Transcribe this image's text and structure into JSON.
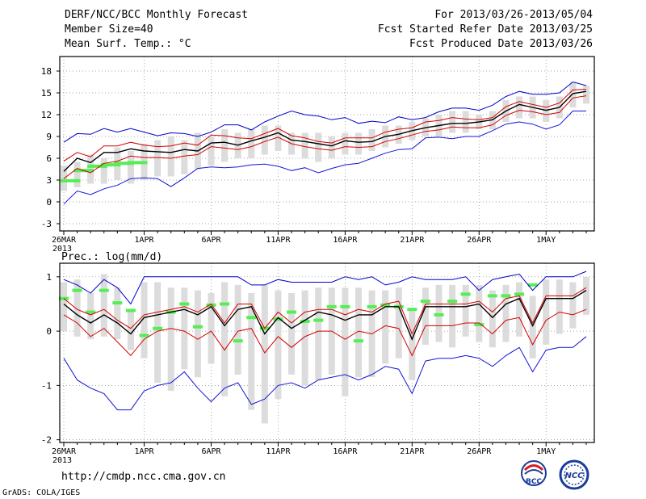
{
  "header": {
    "title": "DERF/NCC/BCC Monthly Forecast",
    "member": "Member Size=40",
    "variable": "Mean Surf. Temp.: °C",
    "period": "For 2013/03/26-2013/05/04",
    "refer": "Fcst Started Refer Date 2013/03/25",
    "produced": "Fcst Produced Date 2013/03/26"
  },
  "footer": {
    "url": "http://cmdp.ncc.cma.gov.cn",
    "grads": "GrADS: COLA/IGES",
    "logo_left": "BCC",
    "logo_right": "NCC"
  },
  "colors": {
    "max": "#0000cc",
    "min": "#1414d8",
    "upper": "#d40000",
    "lower": "#d40000",
    "mean": "#000000",
    "ensemble": "#dcdcdc",
    "obs": "#55ee55"
  },
  "chart_data": [
    {
      "type": "line",
      "title": "Mean Surf. Temp.: °C",
      "ylim": [
        -4,
        20
      ],
      "yticks": [
        -3,
        0,
        3,
        6,
        9,
        12,
        15,
        18
      ],
      "xlabels": [
        "26MAR",
        "1APR",
        "6APR",
        "11APR",
        "16APR",
        "21APR",
        "26APR",
        "1MAY"
      ],
      "xlabel_days": [
        1,
        7,
        12,
        17,
        22,
        27,
        32,
        37
      ],
      "year_label": "2013",
      "days": 40,
      "series": [
        {
          "name": "max",
          "values": [
            8.2,
            9.4,
            9.3,
            10.1,
            9.6,
            10.1,
            9.6,
            9.1,
            9.5,
            9.4,
            9.0,
            9.6,
            10.6,
            10.6,
            9.9,
            11.0,
            11.8,
            12.5,
            12.0,
            11.8,
            11.3,
            11.6,
            10.8,
            11.1,
            10.9,
            11.7,
            11.3,
            11.6,
            12.4,
            12.9,
            12.9,
            12.6,
            13.3,
            14.5,
            15.2,
            14.8,
            14.8,
            15.0,
            16.5,
            16.0
          ]
        },
        {
          "name": "upper",
          "values": [
            5.6,
            6.8,
            6.2,
            7.7,
            7.7,
            8.2,
            7.8,
            7.6,
            7.7,
            8.1,
            7.8,
            9.2,
            9.1,
            8.8,
            8.7,
            9.4,
            10.1,
            9.1,
            8.8,
            8.3,
            8.1,
            8.8,
            8.8,
            8.8,
            9.6,
            10.0,
            10.2,
            11.0,
            11.2,
            11.6,
            11.4,
            11.3,
            11.6,
            13.1,
            13.8,
            13.4,
            13.0,
            13.6,
            15.4,
            15.5
          ]
        },
        {
          "name": "mean",
          "values": [
            4.2,
            6.0,
            5.4,
            6.8,
            6.8,
            7.3,
            7.0,
            6.9,
            6.8,
            7.2,
            7.0,
            8.1,
            8.2,
            7.8,
            8.4,
            8.9,
            9.5,
            8.5,
            8.3,
            8.0,
            7.7,
            8.4,
            8.2,
            8.3,
            9.0,
            9.3,
            9.8,
            10.2,
            10.5,
            10.8,
            10.8,
            11.0,
            11.3,
            12.5,
            13.4,
            13.0,
            12.6,
            13.0,
            14.9,
            15.2
          ]
        },
        {
          "name": "lower",
          "values": [
            3.2,
            4.6,
            4.0,
            5.3,
            5.6,
            6.3,
            6.1,
            6.1,
            6.0,
            6.3,
            6.5,
            7.6,
            7.4,
            7.2,
            7.6,
            8.3,
            8.9,
            8.0,
            7.6,
            7.3,
            7.1,
            7.6,
            7.5,
            7.6,
            8.3,
            8.7,
            9.2,
            9.7,
            9.9,
            10.3,
            10.2,
            10.2,
            10.6,
            11.9,
            12.6,
            12.4,
            12.0,
            12.3,
            14.3,
            14.6
          ]
        },
        {
          "name": "min",
          "values": [
            -0.3,
            1.5,
            1.0,
            1.8,
            2.3,
            3.2,
            3.3,
            3.2,
            2.1,
            3.3,
            4.6,
            4.8,
            4.7,
            4.8,
            5.1,
            5.2,
            4.9,
            4.3,
            4.7,
            4.0,
            4.6,
            5.1,
            5.3,
            6.0,
            6.7,
            7.2,
            7.3,
            8.8,
            8.9,
            8.7,
            9.0,
            9.0,
            9.8,
            10.7,
            11.0,
            10.7,
            10.0,
            10.6,
            12.5,
            12.5
          ]
        }
      ],
      "ensemble_ranges": [
        [
          1.5,
          5.0
        ],
        [
          2.0,
          5.5
        ],
        [
          2.5,
          6.5
        ],
        [
          2.5,
          6.0
        ],
        [
          3.0,
          7.5
        ],
        [
          2.5,
          7.0
        ],
        [
          3.0,
          8.0
        ],
        [
          3.5,
          8.5
        ],
        [
          3.5,
          9.0
        ],
        [
          3.8,
          8.5
        ],
        [
          4.5,
          9.5
        ],
        [
          5.0,
          9.0
        ],
        [
          5.5,
          10.0
        ],
        [
          6.0,
          9.5
        ],
        [
          6.0,
          10.0
        ],
        [
          6.5,
          10.5
        ],
        [
          7.0,
          10.5
        ],
        [
          6.5,
          9.5
        ],
        [
          6.0,
          9.5
        ],
        [
          5.5,
          9.5
        ],
        [
          6.0,
          9.0
        ],
        [
          6.5,
          9.5
        ],
        [
          6.5,
          9.5
        ],
        [
          7.0,
          10.0
        ],
        [
          7.5,
          10.5
        ],
        [
          8.0,
          10.5
        ],
        [
          8.5,
          11.0
        ],
        [
          9.0,
          11.5
        ],
        [
          9.0,
          12.0
        ],
        [
          9.5,
          12.5
        ],
        [
          9.5,
          12.5
        ],
        [
          10.0,
          12.0
        ],
        [
          10.0,
          12.5
        ],
        [
          11.0,
          14.0
        ],
        [
          11.5,
          14.5
        ],
        [
          11.5,
          14.5
        ],
        [
          11.0,
          14.0
        ],
        [
          11.5,
          14.5
        ],
        [
          13.0,
          16.5
        ],
        [
          13.5,
          16.0
        ]
      ],
      "observed": [
        2.9,
        4.3,
        4.9,
        5.1,
        5.3,
        5.4,
        null,
        null,
        null,
        null,
        null,
        null,
        null,
        null,
        null,
        null,
        null,
        null,
        null,
        null,
        null,
        null,
        null,
        null,
        null,
        null,
        null,
        null,
        null,
        null,
        null,
        null,
        null,
        null,
        null,
        null,
        null,
        null,
        null,
        null
      ],
      "observed_span": [
        [
          2.9,
          0,
          1
        ],
        [
          4.3,
          1,
          2
        ],
        [
          4.9,
          2,
          3
        ],
        [
          5.1,
          3,
          4
        ],
        [
          5.3,
          4,
          5
        ],
        [
          5.4,
          5,
          6
        ]
      ]
    },
    {
      "type": "line",
      "title": "Prec.: log(mm/d)",
      "ylim": [
        -2.05,
        1.25
      ],
      "yticks": [
        -2,
        -1,
        0,
        1
      ],
      "xlabels": [
        "26MAR",
        "1APR",
        "6APR",
        "11APR",
        "16APR",
        "21APR",
        "26APR",
        "1MAY"
      ],
      "xlabel_days": [
        1,
        7,
        12,
        17,
        22,
        27,
        32,
        37
      ],
      "year_label": "2013",
      "days": 40,
      "series": [
        {
          "name": "max",
          "values": [
            0.95,
            0.85,
            0.7,
            0.95,
            0.8,
            0.5,
            1.0,
            1.0,
            1.0,
            1.0,
            1.0,
            1.0,
            1.0,
            1.0,
            0.85,
            0.85,
            0.95,
            0.9,
            0.9,
            0.9,
            0.9,
            1.0,
            0.95,
            1.0,
            0.85,
            0.9,
            1.0,
            0.95,
            0.95,
            0.95,
            1.0,
            0.75,
            0.95,
            1.0,
            1.05,
            0.75,
            1.0,
            1.0,
            1.0,
            1.1
          ]
        },
        {
          "name": "upper",
          "values": [
            0.6,
            0.4,
            0.3,
            0.4,
            0.2,
            0.05,
            0.3,
            0.35,
            0.4,
            0.45,
            0.35,
            0.5,
            0.15,
            0.5,
            0.5,
            0.05,
            0.35,
            0.15,
            0.35,
            0.4,
            0.4,
            0.3,
            0.4,
            0.35,
            0.5,
            0.55,
            -0.05,
            0.5,
            0.5,
            0.5,
            0.5,
            0.55,
            0.35,
            0.6,
            0.65,
            0.15,
            0.65,
            0.65,
            0.65,
            0.8
          ]
        },
        {
          "name": "mean",
          "values": [
            0.5,
            0.3,
            0.15,
            0.3,
            0.15,
            -0.05,
            0.25,
            0.3,
            0.35,
            0.4,
            0.3,
            0.45,
            0.1,
            0.4,
            0.45,
            -0.05,
            0.25,
            0.05,
            0.2,
            0.35,
            0.3,
            0.2,
            0.3,
            0.3,
            0.45,
            0.45,
            -0.15,
            0.45,
            0.45,
            0.45,
            0.45,
            0.5,
            0.25,
            0.5,
            0.6,
            0.1,
            0.6,
            0.6,
            0.6,
            0.75
          ]
        },
        {
          "name": "lower",
          "values": [
            0.3,
            0.15,
            -0.1,
            0.05,
            -0.2,
            -0.45,
            -0.15,
            0.0,
            0.05,
            0.0,
            -0.15,
            0.0,
            -0.35,
            0.0,
            0.05,
            -0.4,
            -0.1,
            -0.3,
            -0.1,
            0.0,
            0.0,
            -0.15,
            0.0,
            -0.05,
            0.1,
            0.05,
            -0.45,
            0.1,
            0.1,
            0.1,
            0.15,
            0.15,
            -0.05,
            0.2,
            0.25,
            -0.25,
            0.2,
            0.35,
            0.3,
            0.4
          ]
        },
        {
          "name": "min",
          "values": [
            -0.5,
            -0.9,
            -1.05,
            -1.15,
            -1.45,
            -1.45,
            -1.1,
            -1.0,
            -0.95,
            -0.75,
            -1.05,
            -1.3,
            -1.05,
            -0.95,
            -1.35,
            -1.25,
            -1.0,
            -0.95,
            -1.05,
            -0.9,
            -0.85,
            -0.8,
            -0.9,
            -0.8,
            -0.65,
            -0.7,
            -1.15,
            -0.55,
            -0.5,
            -0.5,
            -0.45,
            -0.5,
            -0.65,
            -0.45,
            -0.3,
            -0.75,
            -0.35,
            -0.3,
            -0.3,
            -0.1
          ]
        }
      ],
      "ensemble_ranges": [
        [
          0.0,
          0.9
        ],
        [
          -0.1,
          0.95
        ],
        [
          -0.15,
          0.7
        ],
        [
          -0.1,
          1.05
        ],
        [
          -0.15,
          0.8
        ],
        [
          -0.35,
          0.35
        ],
        [
          -0.5,
          0.9
        ],
        [
          -0.95,
          0.9
        ],
        [
          -1.1,
          0.8
        ],
        [
          -0.7,
          0.8
        ],
        [
          -0.85,
          0.75
        ],
        [
          -0.6,
          0.7
        ],
        [
          -1.2,
          0.9
        ],
        [
          -0.8,
          0.85
        ],
        [
          -1.45,
          0.7
        ],
        [
          -1.7,
          0.85
        ],
        [
          -1.25,
          0.75
        ],
        [
          -0.8,
          0.7
        ],
        [
          -1.0,
          0.75
        ],
        [
          -0.9,
          0.8
        ],
        [
          -0.8,
          0.8
        ],
        [
          -1.2,
          0.8
        ],
        [
          -0.85,
          0.8
        ],
        [
          -0.85,
          0.75
        ],
        [
          -0.6,
          0.75
        ],
        [
          -0.5,
          0.8
        ],
        [
          -0.9,
          0.4
        ],
        [
          -0.25,
          0.8
        ],
        [
          -0.2,
          0.85
        ],
        [
          -0.3,
          0.85
        ],
        [
          -0.1,
          0.85
        ],
        [
          -0.2,
          0.85
        ],
        [
          -0.3,
          0.75
        ],
        [
          -0.2,
          0.85
        ],
        [
          -0.1,
          0.9
        ],
        [
          -0.5,
          0.65
        ],
        [
          -0.25,
          0.95
        ],
        [
          -0.05,
          0.95
        ],
        [
          0.05,
          0.9
        ],
        [
          0.3,
          1.0
        ]
      ],
      "observed": [
        0.6,
        0.75,
        0.35,
        0.75,
        0.52,
        0.38,
        -0.08,
        0.05,
        0.35,
        0.5,
        0.08,
        0.48,
        0.5,
        -0.18,
        0.25,
        0.05,
        0.22,
        0.35,
        0.18,
        0.2,
        0.45,
        0.45,
        -0.18,
        0.45,
        0.48,
        0.45,
        0.4,
        0.55,
        0.3,
        0.55,
        0.68,
        0.12,
        0.65,
        0.65,
        0.68,
        0.85,
        null,
        null,
        null,
        null
      ]
    }
  ]
}
